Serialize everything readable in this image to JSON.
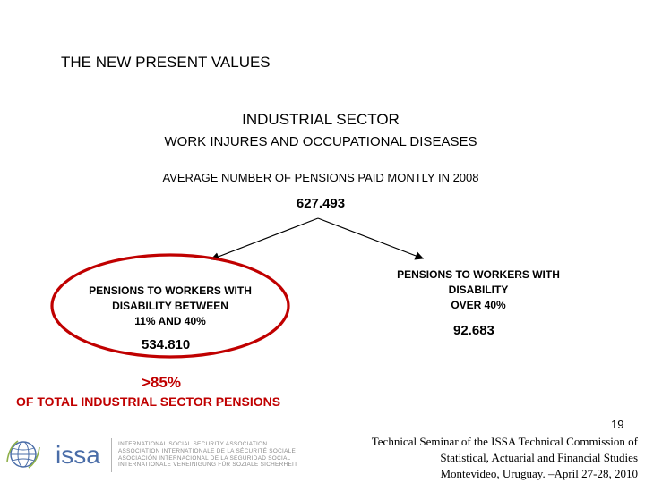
{
  "slide": {
    "title": "THE NEW PRESENT VALUES",
    "sector": "INDUSTRIAL SECTOR",
    "subtitle": "WORK INJURES AND OCCUPATIONAL DISEASES",
    "average_label": "AVERAGE NUMBER OF PENSIONS PAID MONTLY IN 2008",
    "average_value": "627.493",
    "left_branch": {
      "line1": "PENSIONS TO WORKERS WITH",
      "line2": "DISABILITY BETWEEN",
      "line3": "11% AND 40%",
      "value": "534.810"
    },
    "right_branch": {
      "line1": "PENSIONS TO WORKERS WITH",
      "line2": "DISABILITY",
      "line3": "OVER 40%",
      "value": "92.683"
    },
    "share_value": ">85%",
    "share_label": "OF TOTAL INDUSTRIAL SECTOR PENSIONS",
    "highlight_color": "#c00000"
  },
  "footer": {
    "page_number": "19",
    "line1": "Technical Seminar of the ISSA Technical Commission of",
    "line2": "Statistical, Actuarial and Financial Studies",
    "line3": "Montevideo, Uruguay. –April 27-28, 2010"
  },
  "logo": {
    "icon": "globe-icon",
    "word": "issa",
    "assoc_lines": [
      "INTERNATIONAL SOCIAL SECURITY ASSOCIATION",
      "ASSOCIATION INTERNATIONALE DE LA SÉCURITÉ SOCIALE",
      "ASOCIACIÓN INTERNACIONAL DE LA SEGURIDAD SOCIAL",
      "INTERNATIONALE VEREINIGUNG FÜR SOZIALE SICHERHEIT"
    ],
    "color": "#4a6da8"
  }
}
